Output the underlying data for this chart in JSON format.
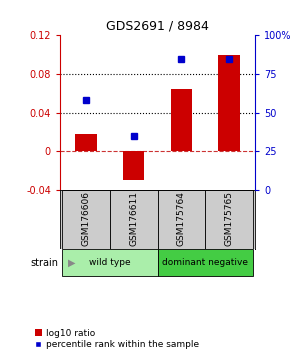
{
  "title": "GDS2691 / 8984",
  "samples": [
    "GSM176606",
    "GSM176611",
    "GSM175764",
    "GSM175765"
  ],
  "log10_ratio": [
    0.018,
    -0.03,
    0.065,
    0.1
  ],
  "percentile_rank": [
    0.58,
    0.35,
    0.85,
    0.85
  ],
  "bar_color": "#cc0000",
  "dot_color": "#0000cc",
  "ylim_left": [
    -0.04,
    0.12
  ],
  "ylim_right": [
    0.0,
    1.0
  ],
  "yticks_left": [
    -0.04,
    0.0,
    0.04,
    0.08,
    0.12
  ],
  "ytick_labels_left": [
    "-0.04",
    "0",
    "0.04",
    "0.08",
    "0.12"
  ],
  "yticks_right": [
    0.0,
    0.25,
    0.5,
    0.75,
    1.0
  ],
  "ytick_labels_right": [
    "0",
    "25",
    "50",
    "75",
    "100%"
  ],
  "hlines": [
    0.04,
    0.08
  ],
  "zero_line": 0.0,
  "groups": [
    {
      "label": "wild type",
      "indices": [
        0,
        1
      ],
      "color": "#aaeeaa"
    },
    {
      "label": "dominant negative",
      "indices": [
        2,
        3
      ],
      "color": "#44cc44"
    }
  ],
  "group_row_label": "strain",
  "legend_bar_label": "log10 ratio",
  "legend_dot_label": "percentile rank within the sample",
  "background_color": "#ffffff",
  "plot_bg_color": "#ffffff",
  "left_axis_color": "#cc0000",
  "right_axis_color": "#0000cc",
  "sample_label_bg": "#cccccc",
  "bar_width": 0.45
}
